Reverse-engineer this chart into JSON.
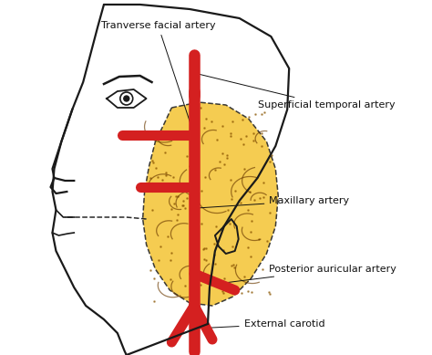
{
  "background_color": "#ffffff",
  "parotid_color": "#f5c842",
  "artery_color": "#d42020",
  "face_outline_color": "#1a1a1a",
  "text_color": "#111111",
  "labels": {
    "transverse": "Tranverse facial artery",
    "superficial": "Superficial temporal artery",
    "maxillary": "Maxillary artery",
    "posterior": "Posterior auricular artery",
    "external": "External carotid"
  },
  "figsize": [
    4.74,
    3.89
  ],
  "dpi": 100
}
